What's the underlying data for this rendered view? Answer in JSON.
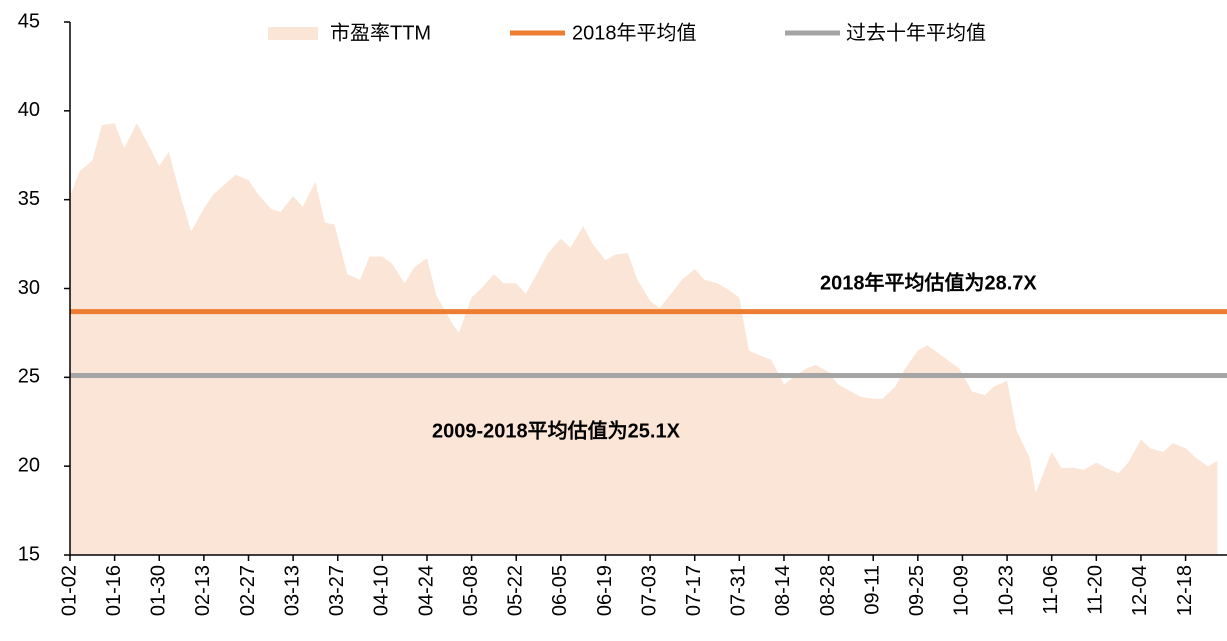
{
  "chart_data": {
    "type": "area",
    "x": [
      "01-02",
      "01-05",
      "01-09",
      "01-12",
      "01-16",
      "01-19",
      "01-23",
      "01-26",
      "01-30",
      "02-02",
      "02-06",
      "02-09",
      "02-13",
      "02-16",
      "02-23",
      "02-27",
      "03-02",
      "03-06",
      "03-09",
      "03-13",
      "03-16",
      "03-20",
      "03-23",
      "03-26",
      "03-30",
      "04-03",
      "04-06",
      "04-10",
      "04-13",
      "04-17",
      "04-20",
      "04-24",
      "04-27",
      "05-02",
      "05-04",
      "05-08",
      "05-11",
      "05-15",
      "05-18",
      "05-22",
      "05-25",
      "05-29",
      "06-01",
      "06-05",
      "06-08",
      "06-12",
      "06-15",
      "06-19",
      "06-22",
      "06-26",
      "06-29",
      "07-03",
      "07-06",
      "07-10",
      "07-13",
      "07-17",
      "07-20",
      "07-24",
      "07-27",
      "07-31",
      "08-03",
      "08-07",
      "08-10",
      "08-14",
      "08-17",
      "08-21",
      "08-24",
      "08-28",
      "08-31",
      "09-04",
      "09-07",
      "09-11",
      "09-14",
      "09-18",
      "09-21",
      "09-25",
      "09-28",
      "10-08",
      "10-12",
      "10-16",
      "10-19",
      "10-23",
      "10-26",
      "10-30",
      "11-01",
      "11-06",
      "11-09",
      "11-13",
      "11-16",
      "11-20",
      "11-23",
      "11-27",
      "11-30",
      "12-04",
      "12-07",
      "12-11",
      "12-14",
      "12-18",
      "12-21",
      "12-25",
      "12-28"
    ],
    "series": [
      {
        "name": "市盈率TTM",
        "color": "#fbe5d6",
        "values": [
          35.2,
          36.6,
          37.2,
          39.2,
          39.3,
          37.9,
          39.3,
          38.3,
          36.9,
          37.7,
          35.0,
          33.2,
          34.5,
          35.3,
          36.4,
          36.1,
          35.3,
          34.5,
          34.3,
          35.2,
          34.6,
          36.0,
          33.7,
          33.6,
          30.8,
          30.5,
          31.8,
          31.8,
          31.4,
          30.3,
          31.2,
          31.7,
          29.6,
          28.0,
          27.5,
          29.5,
          30.0,
          30.8,
          30.3,
          30.3,
          29.7,
          31.0,
          32.0,
          32.8,
          32.3,
          33.5,
          32.5,
          31.6,
          31.9,
          32.0,
          30.5,
          29.3,
          28.9,
          29.8,
          30.5,
          31.1,
          30.5,
          30.3,
          30.0,
          29.5,
          26.5,
          26.2,
          26.0,
          24.6,
          25.0,
          25.5,
          25.7,
          25.3,
          24.6,
          24.2,
          23.9,
          23.8,
          23.8,
          24.5,
          25.5,
          26.5,
          26.8,
          25.5,
          24.2,
          24.0,
          24.5,
          24.8,
          22.0,
          20.5,
          18.5,
          20.8,
          19.9,
          19.9,
          19.8,
          20.2,
          19.9,
          19.6,
          20.2,
          21.5,
          21.0,
          20.8,
          21.3,
          21.0,
          20.5,
          20.0,
          20.3
        ]
      },
      {
        "name": "2018年平均值",
        "color": "#ed7d31",
        "value": 28.7
      },
      {
        "name": "过去十年平均值",
        "color": "#a5a5a5",
        "value": 25.1
      }
    ],
    "annotations": [
      "2018年平均估值为28.7X",
      "2009-2018平均估值为25.1X"
    ],
    "xlim": [
      "01-02",
      "12-31"
    ],
    "xticks": [
      "01-02",
      "01-16",
      "01-30",
      "02-13",
      "02-27",
      "03-13",
      "03-27",
      "04-10",
      "04-24",
      "05-08",
      "05-22",
      "06-05",
      "06-19",
      "07-03",
      "07-17",
      "07-31",
      "08-14",
      "08-28",
      "09-11",
      "09-25",
      "10-09",
      "10-23",
      "11-06",
      "11-20",
      "12-04",
      "12-18"
    ],
    "ylim": [
      15,
      45
    ],
    "yticks": [
      15,
      20,
      25,
      30,
      35,
      40,
      45
    ]
  }
}
